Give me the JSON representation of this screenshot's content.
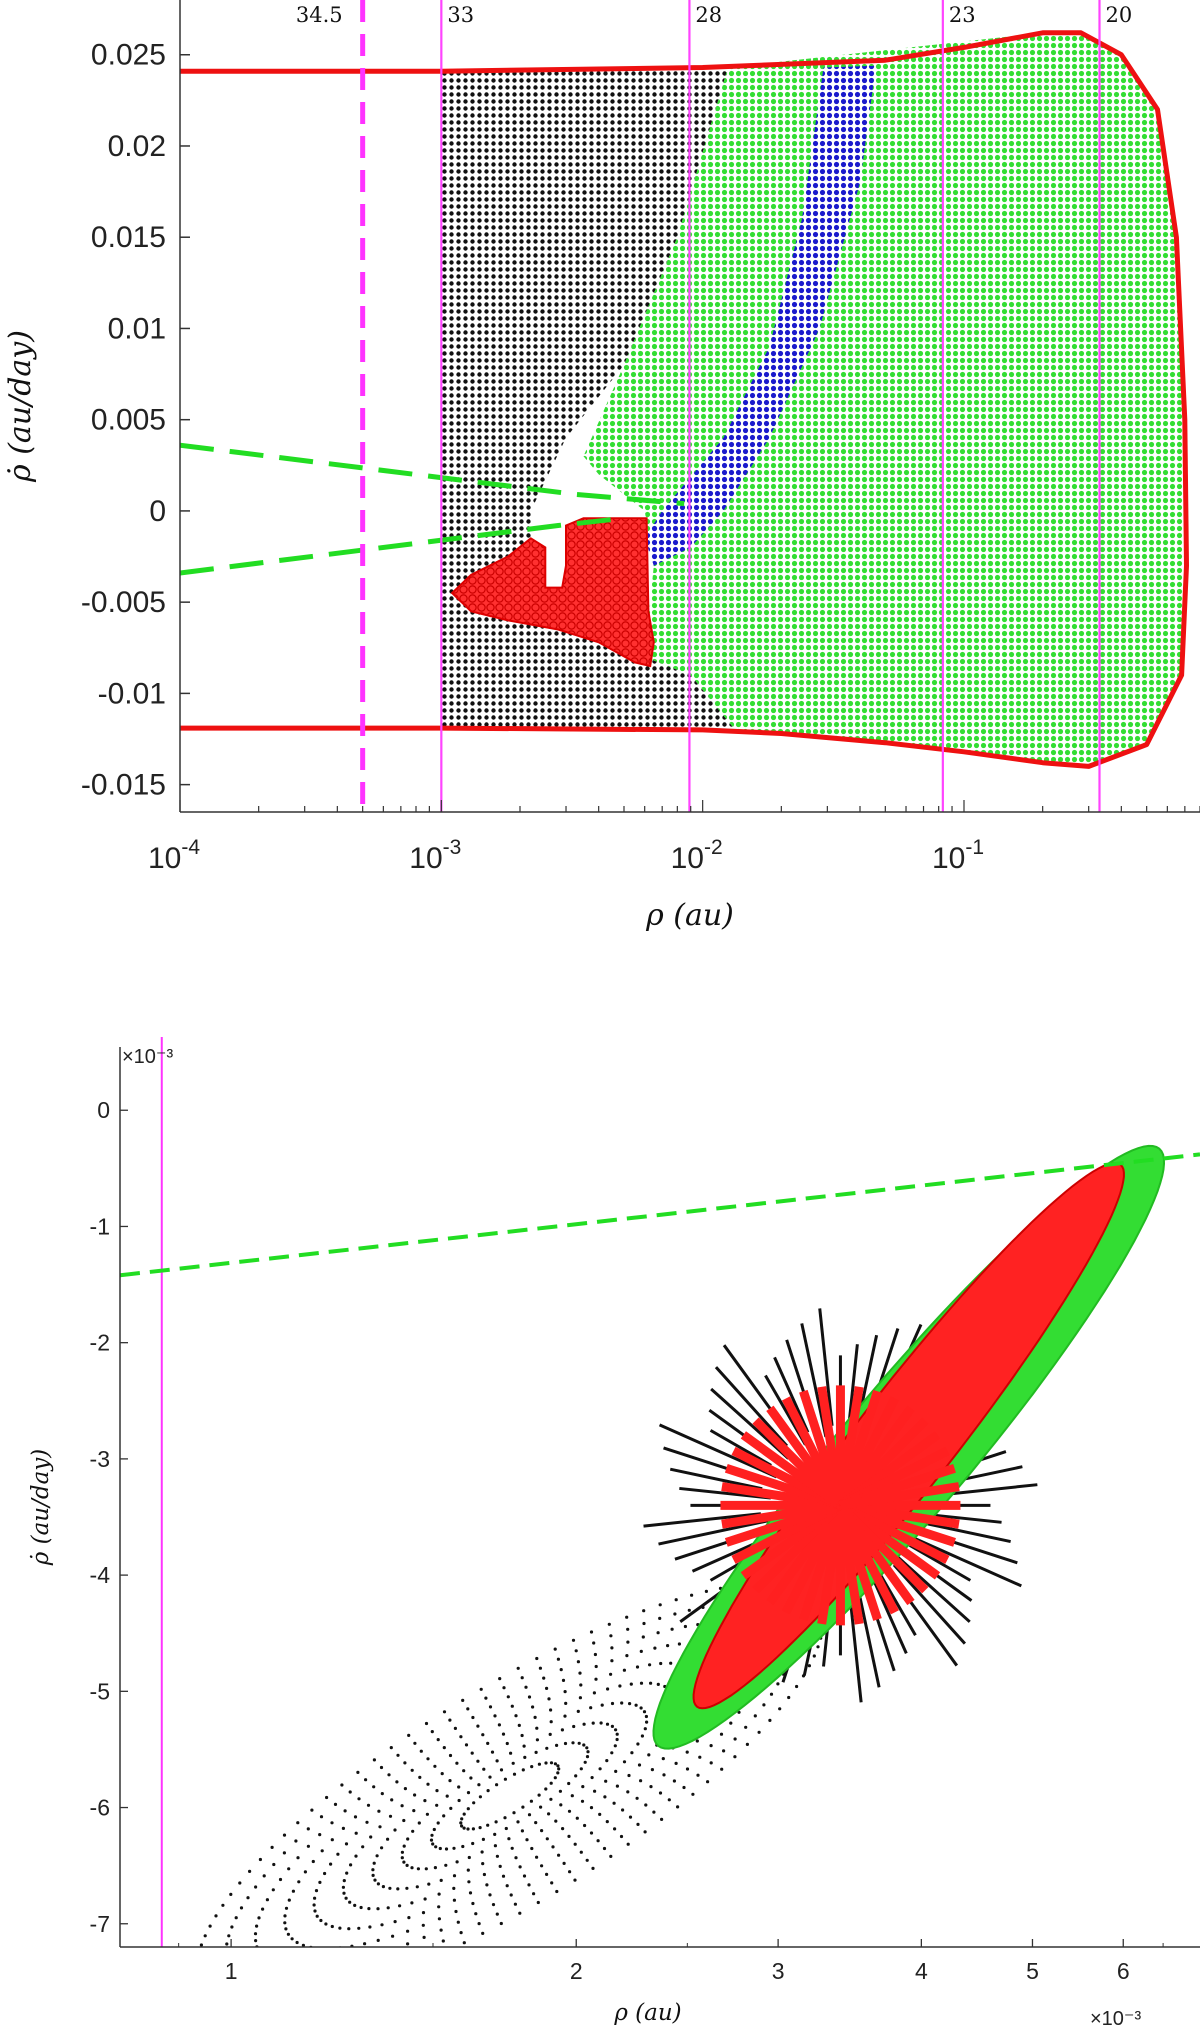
{
  "chart_data": [
    {
      "type": "scatter",
      "xlabel": "ρ (au)",
      "ylabel": "ρ̇ (au/day)",
      "x_scale": "log",
      "xlim": [
        0.0001,
        0.8
      ],
      "ylim": [
        -0.0165,
        0.028
      ],
      "x_tick_labels": [
        {
          "value": 0.0001,
          "base": "10",
          "exp": "-4"
        },
        {
          "value": 0.001,
          "base": "10",
          "exp": "-3"
        },
        {
          "value": 0.01,
          "base": "10",
          "exp": "-2"
        },
        {
          "value": 0.1,
          "base": "10",
          "exp": "-1"
        }
      ],
      "y_ticks": [
        -0.015,
        -0.01,
        -0.005,
        0,
        0.005,
        0.01,
        0.015,
        0.02,
        0.025
      ],
      "y_tick_labels": [
        "-0.015",
        "-0.01",
        "-0.005",
        "0",
        "0.005",
        "0.01",
        "0.015",
        "0.02",
        "0.025"
      ],
      "vertical_lines": [
        {
          "x": 0.0005,
          "label": "34.5",
          "style": "dashed"
        },
        {
          "x": 0.001,
          "label": "33",
          "style": "solid"
        },
        {
          "x": 0.0089,
          "label": "28",
          "style": "solid"
        },
        {
          "x": 0.083,
          "label": "23",
          "style": "solid"
        },
        {
          "x": 0.33,
          "label": "20",
          "style": "solid"
        }
      ],
      "boundary": {
        "upper": [
          [
            0.0001,
            0.0241
          ],
          [
            0.001,
            0.0241
          ],
          [
            0.01,
            0.0243
          ],
          [
            0.05,
            0.0247
          ],
          [
            0.1,
            0.0254
          ],
          [
            0.2,
            0.0262
          ],
          [
            0.28,
            0.0262
          ],
          [
            0.4,
            0.025
          ],
          [
            0.55,
            0.022
          ],
          [
            0.65,
            0.015
          ],
          [
            0.7,
            0.005
          ],
          [
            0.71,
            -0.003
          ],
          [
            0.68,
            -0.009
          ],
          [
            0.5,
            -0.0128
          ],
          [
            0.3,
            -0.014
          ],
          [
            0.2,
            -0.0138
          ],
          [
            0.1,
            -0.0132
          ],
          [
            0.05,
            -0.0127
          ],
          [
            0.02,
            -0.0122
          ],
          [
            0.01,
            -0.012
          ],
          [
            0.001,
            -0.0119
          ],
          [
            0.0001,
            -0.0119
          ]
        ]
      },
      "regions": [
        {
          "name": "black",
          "polygon": [
            [
              0.001,
              0.0241
            ],
            [
              0.0125,
              0.0243
            ],
            [
              0.008,
              0.015
            ],
            [
              0.005,
              0.008
            ],
            [
              0.003,
              0.004
            ],
            [
              0.0022,
              0.0
            ],
            [
              0.0022,
              -0.004
            ],
            [
              0.006,
              -0.008
            ],
            [
              0.009,
              -0.009
            ],
            [
              0.0135,
              -0.0121
            ],
            [
              0.001,
              -0.0119
            ]
          ]
        },
        {
          "name": "green",
          "polygon": [
            [
              0.0125,
              0.0243
            ],
            [
              0.2,
              0.0262
            ],
            [
              0.28,
              0.0262
            ],
            [
              0.4,
              0.025
            ],
            [
              0.55,
              0.022
            ],
            [
              0.65,
              0.015
            ],
            [
              0.7,
              0.005
            ],
            [
              0.71,
              -0.003
            ],
            [
              0.68,
              -0.009
            ],
            [
              0.5,
              -0.0128
            ],
            [
              0.3,
              -0.014
            ],
            [
              0.2,
              -0.0138
            ],
            [
              0.1,
              -0.0132
            ],
            [
              0.05,
              -0.0127
            ],
            [
              0.0135,
              -0.0121
            ],
            [
              0.009,
              -0.009
            ],
            [
              0.006,
              -0.008
            ],
            [
              0.0065,
              -0.003
            ],
            [
              0.006,
              0.0
            ],
            [
              0.004,
              0.002
            ],
            [
              0.0035,
              0.003
            ],
            [
              0.005,
              0.008
            ],
            [
              0.008,
              0.015
            ]
          ]
        },
        {
          "name": "blue",
          "polygon": [
            [
              0.029,
              0.0243
            ],
            [
              0.046,
              0.0244
            ],
            [
              0.04,
              0.018
            ],
            [
              0.028,
              0.01
            ],
            [
              0.018,
              0.004
            ],
            [
              0.012,
              0.0
            ],
            [
              0.009,
              -0.002
            ],
            [
              0.0065,
              -0.003
            ],
            [
              0.006,
              -0.0015
            ],
            [
              0.007,
              0.0
            ],
            [
              0.008,
              0.001
            ],
            [
              0.012,
              0.004
            ],
            [
              0.018,
              0.009
            ],
            [
              0.024,
              0.016
            ]
          ]
        },
        {
          "name": "red",
          "polygon": [
            [
              0.0035,
              -0.0004
            ],
            [
              0.0061,
              -0.0004
            ],
            [
              0.0062,
              -0.0055
            ],
            [
              0.0065,
              -0.0072
            ],
            [
              0.0063,
              -0.0085
            ],
            [
              0.0055,
              -0.0083
            ],
            [
              0.004,
              -0.0072
            ],
            [
              0.0028,
              -0.0065
            ],
            [
              0.0018,
              -0.006
            ],
            [
              0.0013,
              -0.0055
            ],
            [
              0.0011,
              -0.0045
            ],
            [
              0.0013,
              -0.0035
            ],
            [
              0.0018,
              -0.0025
            ],
            [
              0.0022,
              -0.0015
            ],
            [
              0.0025,
              -0.002
            ],
            [
              0.0025,
              -0.0042
            ],
            [
              0.0029,
              -0.0042
            ],
            [
              0.003,
              -0.003
            ],
            [
              0.003,
              -0.0008
            ]
          ]
        }
      ],
      "dashed_lines": [
        {
          "color": "#22dd22",
          "points": [
            [
              0.0001,
              0.0036
            ],
            [
              0.0033,
              0.0009
            ],
            [
              0.0085,
              0.0004
            ]
          ]
        },
        {
          "color": "#22dd22",
          "points": [
            [
              0.0001,
              -0.0034
            ],
            [
              0.0028,
              -0.0008
            ],
            [
              0.005,
              -0.0004
            ]
          ]
        }
      ]
    },
    {
      "type": "scatter",
      "xlabel": "ρ (au)",
      "ylabel": "ρ̇ (au/day)",
      "x_scale": "log",
      "x_multiplier": "×10⁻³",
      "y_multiplier": "×10⁻³",
      "xlim": [
        0.8,
        7.0
      ],
      "ylim": [
        -7.2,
        0.2
      ],
      "x_ticks": [
        1,
        2,
        3,
        4,
        5,
        6
      ],
      "x_tick_labels": [
        "1",
        "2",
        "3",
        "4",
        "5",
        "6"
      ],
      "y_ticks": [
        0,
        -1,
        -2,
        -3,
        -4,
        -5,
        -6,
        -7
      ],
      "y_tick_labels": [
        "0",
        "-1",
        "-2",
        "-3",
        "-4",
        "-5",
        "-6",
        "-7"
      ],
      "vertical_line": {
        "x": 0.87
      },
      "dashed_line": {
        "color": "#22dd22",
        "points": [
          [
            0.8,
            -1.42
          ],
          [
            7.0,
            -0.38
          ]
        ]
      },
      "ellipses": [
        {
          "name": "black-dots",
          "cx": 1.75,
          "cy": -5.9,
          "rx_log": 0.33,
          "ry": 0.95,
          "angle": -32
        },
        {
          "name": "green",
          "cx": 3.9,
          "cy": -2.9,
          "rx_log": 0.34,
          "ry": 0.55,
          "angle": -50
        },
        {
          "name": "red",
          "cx": 3.9,
          "cy": -2.8,
          "rx_log": 0.3,
          "ry": 0.42,
          "angle": -52
        }
      ],
      "spokes_center": [
        3.4,
        -3.4
      ]
    }
  ]
}
